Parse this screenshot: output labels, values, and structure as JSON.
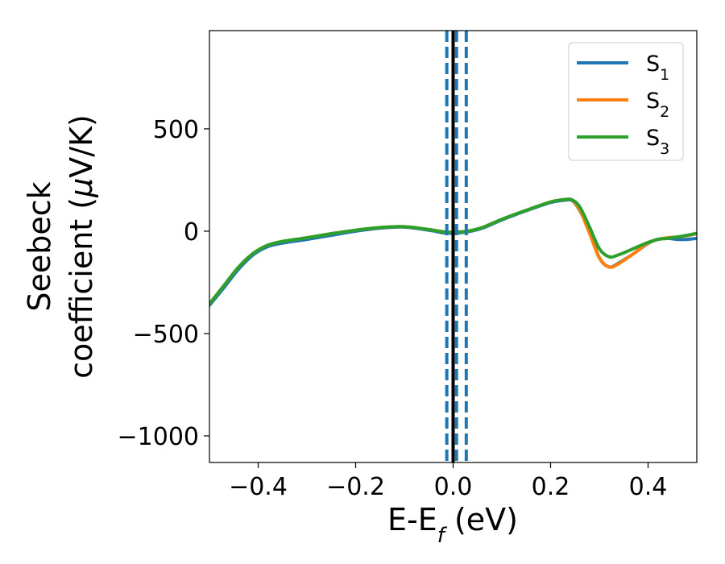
{
  "chart_data": {
    "type": "line",
    "xlabel": "E-E_f (eV)",
    "ylabel_line1": "Seebeck",
    "ylabel_line2": "coefficient  (μV/K)",
    "xlim": [
      -0.5,
      0.5
    ],
    "ylim": [
      -1130,
      980
    ],
    "xticks": [
      -0.4,
      -0.2,
      0.0,
      0.2,
      0.4
    ],
    "xtick_labels": [
      "−0.4",
      "−0.2",
      "0.0",
      "0.2",
      "0.4"
    ],
    "yticks": [
      -1000,
      -500,
      0,
      500
    ],
    "ytick_labels": [
      "−1000",
      "−500",
      "0",
      "500"
    ],
    "grid": false,
    "legend_position": "upper right",
    "vlines": [
      {
        "x": 0.0,
        "style": "solid",
        "color": "#000000"
      },
      {
        "x": -0.013,
        "style": "dashed",
        "color": "#1f77b4"
      },
      {
        "x": 0.007,
        "style": "dashed",
        "color": "#1f77b4"
      },
      {
        "x": 0.027,
        "style": "dashed",
        "color": "#1f77b4"
      }
    ],
    "series": [
      {
        "name": "S",
        "sub": "1",
        "color": "#1f77b4",
        "x": [
          -0.5,
          -0.47,
          -0.44,
          -0.41,
          -0.38,
          -0.35,
          -0.3,
          -0.25,
          -0.2,
          -0.15,
          -0.1,
          -0.05,
          -0.02,
          0.0,
          0.03,
          0.06,
          0.1,
          0.15,
          0.2,
          0.23,
          0.245,
          0.26,
          0.28,
          0.3,
          0.32,
          0.34,
          0.37,
          0.4,
          0.42,
          0.44,
          0.46,
          0.48,
          0.5
        ],
        "y": [
          -362,
          -275,
          -185,
          -115,
          -75,
          -58,
          -40,
          -20,
          0,
          15,
          20,
          5,
          -8,
          -10,
          -3,
          15,
          55,
          100,
          140,
          152,
          148,
          100,
          0,
          -130,
          -175,
          -155,
          -110,
          -60,
          -40,
          -35,
          -40,
          -40,
          -35
        ]
      },
      {
        "name": "S",
        "sub": "2",
        "color": "#ff7f0e",
        "x": [
          -0.5,
          -0.47,
          -0.44,
          -0.41,
          -0.38,
          -0.35,
          -0.3,
          -0.25,
          -0.2,
          -0.15,
          -0.1,
          -0.05,
          -0.02,
          0.0,
          0.03,
          0.06,
          0.1,
          0.15,
          0.2,
          0.23,
          0.245,
          0.26,
          0.28,
          0.3,
          0.32,
          0.34,
          0.37,
          0.4,
          0.42,
          0.44,
          0.46,
          0.48,
          0.5
        ],
        "y": [
          -355,
          -265,
          -175,
          -108,
          -68,
          -50,
          -32,
          -12,
          5,
          18,
          22,
          8,
          -3,
          -5,
          0,
          18,
          58,
          102,
          143,
          155,
          150,
          102,
          -10,
          -130,
          -175,
          -158,
          -110,
          -58,
          -40,
          -32,
          -28,
          -22,
          -12
        ]
      },
      {
        "name": "S",
        "sub": "3",
        "color": "#2ca02c",
        "x": [
          -0.5,
          -0.47,
          -0.44,
          -0.41,
          -0.38,
          -0.35,
          -0.3,
          -0.25,
          -0.2,
          -0.15,
          -0.1,
          -0.05,
          -0.02,
          0.0,
          0.03,
          0.06,
          0.1,
          0.15,
          0.2,
          0.23,
          0.245,
          0.26,
          0.28,
          0.3,
          0.32,
          0.34,
          0.37,
          0.4,
          0.42,
          0.44,
          0.46,
          0.48,
          0.5
        ],
        "y": [
          -355,
          -265,
          -175,
          -108,
          -68,
          -50,
          -32,
          -12,
          5,
          18,
          22,
          8,
          -3,
          -5,
          0,
          18,
          58,
          102,
          143,
          155,
          152,
          118,
          20,
          -85,
          -125,
          -115,
          -85,
          -55,
          -40,
          -35,
          -28,
          -20,
          -10
        ]
      }
    ]
  }
}
